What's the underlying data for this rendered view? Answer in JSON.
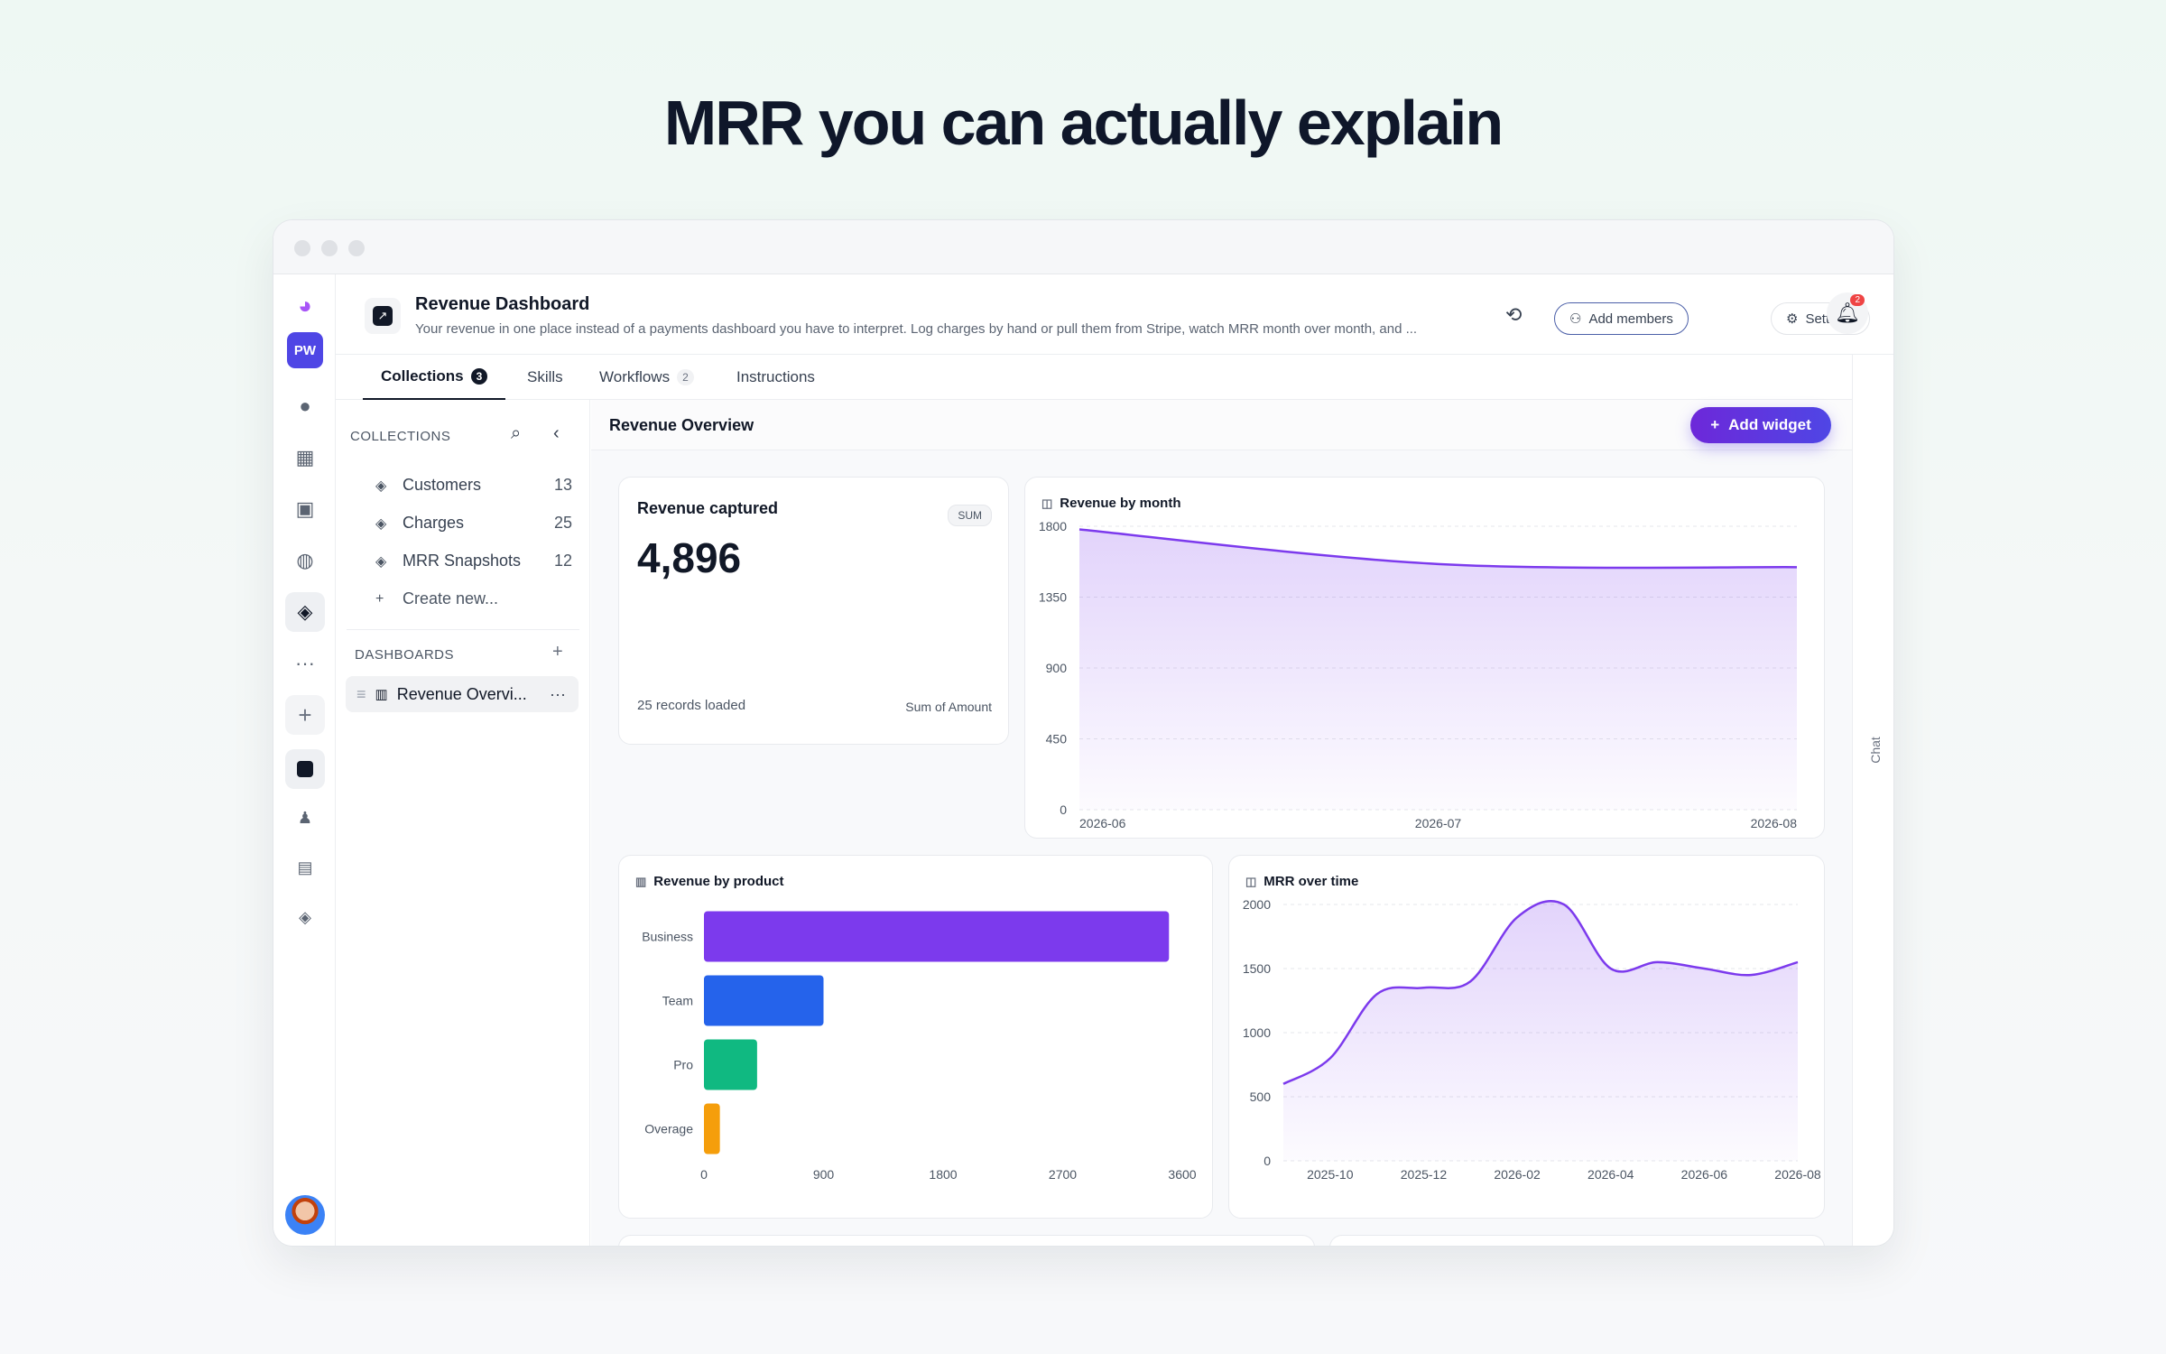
{
  "hero": {
    "title": "MRR you can actually explain"
  },
  "rail": {
    "workspace": "PW"
  },
  "header": {
    "title": "Revenue Dashboard",
    "description": "Your revenue in one place instead of a payments dashboard you have to interpret. Log charges by hand or pull them from Stripe, watch MRR month over month, and ...",
    "add_members": "Add members",
    "settings": "Settings",
    "notifications": "2"
  },
  "tabs": [
    {
      "label": "Collections",
      "count": "3"
    },
    {
      "label": "Skills",
      "count": ""
    },
    {
      "label": "Workflows",
      "count": "2"
    },
    {
      "label": "Instructions",
      "count": ""
    }
  ],
  "sidebar": {
    "collections_heading": "COLLECTIONS",
    "collections": [
      {
        "label": "Customers",
        "count": "13"
      },
      {
        "label": "Charges",
        "count": "25"
      },
      {
        "label": "MRR Snapshots",
        "count": "12"
      }
    ],
    "create_new": "Create new...",
    "dashboards_heading": "DASHBOARDS",
    "dashboards": [
      {
        "label": "Revenue Overvi..."
      }
    ]
  },
  "main": {
    "title": "Revenue Overview",
    "add_widget": "Add widget",
    "chat_label": "Chat"
  },
  "metric": {
    "title": "Revenue captured",
    "badge": "SUM",
    "value": "4,896",
    "footer_left": "25 records loaded",
    "footer_right": "Sum of Amount"
  },
  "chart_data": [
    {
      "type": "area",
      "title": "Revenue by month",
      "x": [
        "2026-06",
        "2026-07",
        "2026-08"
      ],
      "values": [
        1780,
        1560,
        1540
      ],
      "ylim": [
        0,
        1800
      ],
      "yticks": [
        0,
        450,
        900,
        1350,
        1800
      ],
      "color": "#7c3aed"
    },
    {
      "type": "bar",
      "orientation": "horizontal",
      "title": "Revenue by product",
      "categories": [
        "Business",
        "Team",
        "Pro",
        "Overage"
      ],
      "values": [
        3500,
        900,
        400,
        120
      ],
      "colors": [
        "#7c3aed",
        "#2563eb",
        "#10b981",
        "#f59e0b"
      ],
      "xlim": [
        0,
        3600
      ],
      "xticks": [
        0,
        900,
        1800,
        2700,
        3600
      ]
    },
    {
      "type": "area",
      "title": "MRR over time",
      "x": [
        "2025-09",
        "2025-10",
        "2025-11",
        "2025-12",
        "2026-01",
        "2026-02",
        "2026-03",
        "2026-04",
        "2026-05",
        "2026-06",
        "2026-07",
        "2026-08"
      ],
      "values": [
        600,
        800,
        1300,
        1350,
        1400,
        1900,
        2000,
        1500,
        1550,
        1500,
        1450,
        1550
      ],
      "xticklabels": [
        "2025-10",
        "2025-12",
        "2026-02",
        "2026-04",
        "2026-06",
        "2026-08"
      ],
      "ylim": [
        0,
        2000
      ],
      "yticks": [
        0,
        500,
        1000,
        1500,
        2000
      ],
      "color": "#7c3aed"
    }
  ]
}
